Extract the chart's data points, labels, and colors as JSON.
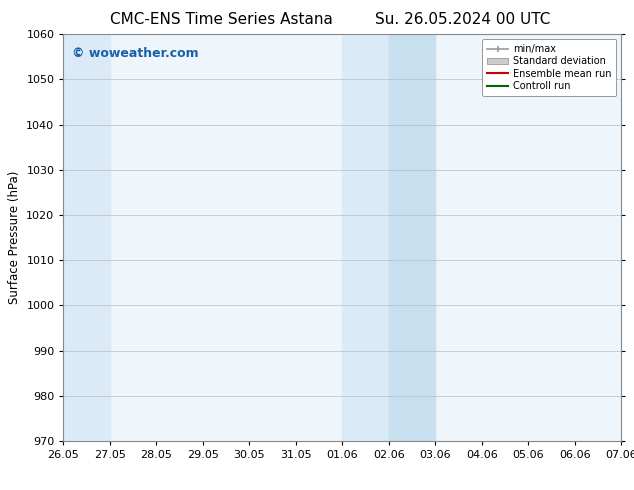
{
  "title_left": "CMC-ENS Time Series Astana",
  "title_right": "Su. 26.05.2024 00 UTC",
  "ylabel": "Surface Pressure (hPa)",
  "ylim": [
    970,
    1060
  ],
  "yticks": [
    970,
    980,
    990,
    1000,
    1010,
    1020,
    1030,
    1040,
    1050,
    1060
  ],
  "xtick_labels": [
    "26.05",
    "27.05",
    "28.05",
    "29.05",
    "30.05",
    "31.05",
    "01.06",
    "02.06",
    "03.06",
    "04.06",
    "05.06",
    "06.06",
    "07.06"
  ],
  "xtick_positions": [
    0,
    1,
    2,
    3,
    4,
    5,
    6,
    7,
    8,
    9,
    10,
    11,
    12
  ],
  "shaded_regions": [
    {
      "xstart": 0,
      "xend": 1,
      "color": "#daeaf7"
    },
    {
      "xstart": 6,
      "xend": 7,
      "color": "#daeaf7"
    },
    {
      "xstart": 7,
      "xend": 8,
      "color": "#c8dff0"
    }
  ],
  "watermark": "© woweather.com",
  "watermark_color": "#1a5fa8",
  "legend_labels": [
    "min/max",
    "Standard deviation",
    "Ensemble mean run",
    "Controll run"
  ],
  "legend_colors": [
    "#999999",
    "#cccccc",
    "#cc0000",
    "#006600"
  ],
  "bg_color": "#ffffff",
  "plot_bg_color": "#eef5fb",
  "grid_color": "#bbbbbb",
  "title_fontsize": 11,
  "tick_fontsize": 8,
  "ylabel_fontsize": 8.5,
  "watermark_fontsize": 9
}
